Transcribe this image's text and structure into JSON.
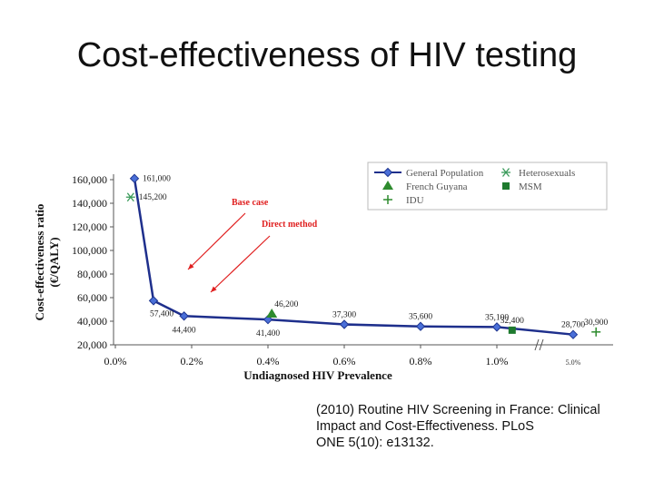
{
  "slide": {
    "title": "Cost-effectiveness of HIV testing",
    "citation": [
      "(2010) Routine HIV Screening in France: Clinical",
      "Impact and Cost-Effectiveness. PLoS",
      "ONE 5(10): e13132."
    ]
  },
  "chart_data": {
    "type": "line",
    "title": "",
    "xlabel": "Undiagnosed HIV Prevalence",
    "ylabel": "Cost-effectiveness ratio (€/QALY)",
    "ylim": [
      20000,
      160000
    ],
    "yticks": [
      20000,
      40000,
      60000,
      80000,
      100000,
      120000,
      140000,
      160000
    ],
    "ytick_labels": [
      "20,000",
      "40,000",
      "60,000",
      "80,000",
      "100,000",
      "120,000",
      "140,000",
      "160,000"
    ],
    "xlim": [
      0,
      1.2
    ],
    "xticks": [
      0,
      0.2,
      0.4,
      0.6,
      0.8,
      1.0
    ],
    "xtick_labels": [
      "0.0%",
      "0.2%",
      "0.4%",
      "0.6%",
      "0.8%",
      "1.0%"
    ],
    "axis_break": {
      "after": 1.0,
      "extra_tick_position": 1.2,
      "extra_tick_label": "5.0%"
    },
    "grid": false,
    "legend_position": "top-right",
    "series": [
      {
        "name": "General Population",
        "marker": "diamond",
        "color": "#2a44a8",
        "points": [
          {
            "x": 0.05,
            "y": 161000,
            "label": "161,000",
            "label_side": "right"
          },
          {
            "x": 0.1,
            "y": 57400,
            "label": "57,400",
            "label_side": "below-right"
          },
          {
            "x": 0.18,
            "y": 44400,
            "label": "44,400",
            "label_side": "below"
          },
          {
            "x": 0.4,
            "y": 41400,
            "label": "41,400",
            "label_side": "below"
          },
          {
            "x": 0.6,
            "y": 37300,
            "label": "37,300",
            "label_side": "above"
          },
          {
            "x": 0.8,
            "y": 35600,
            "label": "35,600",
            "label_side": "above"
          },
          {
            "x": 1.0,
            "y": 35100,
            "label": "35,100",
            "label_side": "above"
          },
          {
            "x": 1.2,
            "y": 28700,
            "label": "28,700",
            "label_side": "above"
          }
        ]
      },
      {
        "name": "Heterosexuals",
        "marker": "asterisk",
        "color": "#3a9a5a",
        "points": [
          {
            "x": 0.04,
            "y": 145200,
            "label": "145,200",
            "label_side": "right"
          }
        ]
      },
      {
        "name": "French Guyana",
        "marker": "triangle",
        "color": "#2e8b2e",
        "points": [
          {
            "x": 0.41,
            "y": 46200,
            "label": "46,200",
            "label_side": "above-right"
          }
        ]
      },
      {
        "name": "MSM",
        "marker": "square",
        "color": "#1e7a2e",
        "points": [
          {
            "x": 1.04,
            "y": 32400,
            "label": "32,400",
            "label_side": "above"
          }
        ]
      },
      {
        "name": "IDU",
        "marker": "plus",
        "color": "#2e8b2e",
        "points": [
          {
            "x": 1.26,
            "y": 30900,
            "label": "30,900",
            "label_side": "above"
          }
        ]
      }
    ],
    "annotations": [
      {
        "text": "Base case",
        "color": "#e02020"
      },
      {
        "text": "Direct method",
        "color": "#e02020"
      }
    ]
  }
}
